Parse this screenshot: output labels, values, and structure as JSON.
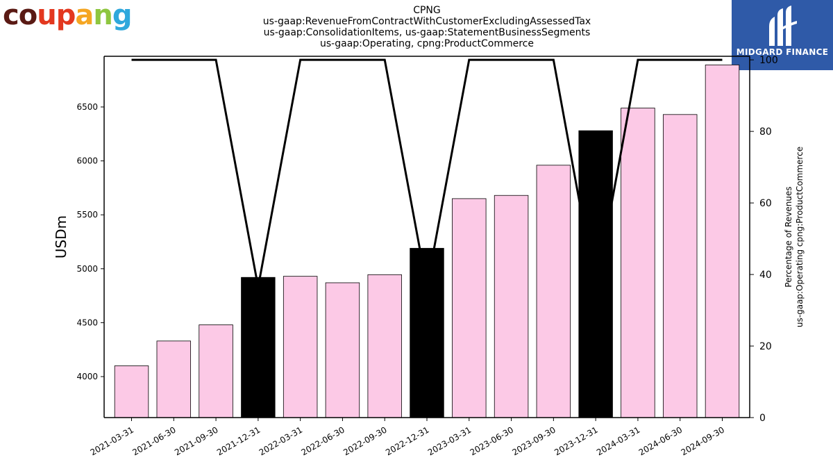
{
  "logos": {
    "left_text": "coupang",
    "left_letter_colors": [
      "#5a1a14",
      "#5a1a14",
      "#e3381f",
      "#e3381f",
      "#f5a623",
      "#8ec63f",
      "#2fa8dc"
    ],
    "right_text": "MIDGARD FINANCE",
    "right_bg": "#2f5aa8"
  },
  "chart_data": {
    "type": "bar",
    "title_lines": [
      "CPNG",
      "us-gaap:RevenueFromContractWithCustomerExcludingAssessedTax",
      "us-gaap:ConsolidationItems, us-gaap:StatementBusinessSegments",
      "us-gaap:Operating, cpng:ProductCommerce"
    ],
    "ylabel": "USDm",
    "y2label_lines": [
      "Percentage of Revenues",
      "us-gaap:Operating cpng:ProductCommerce"
    ],
    "categories": [
      "2021-03-31",
      "2021-06-30",
      "2021-09-30",
      "2021-12-31",
      "2022-03-31",
      "2022-06-30",
      "2022-09-30",
      "2022-12-31",
      "2023-03-31",
      "2023-06-30",
      "2023-09-30",
      "2023-12-31",
      "2024-03-31",
      "2024-06-30",
      "2024-09-30"
    ],
    "values": [
      4100,
      4330,
      4480,
      4920,
      4930,
      4870,
      4945,
      5190,
      5650,
      5680,
      5960,
      6280,
      6490,
      6430,
      6890
    ],
    "highlight": [
      false,
      false,
      false,
      true,
      false,
      false,
      false,
      true,
      false,
      false,
      false,
      true,
      false,
      false,
      false
    ],
    "bar_color": "#fcc9e6",
    "highlight_color": "#000000",
    "ylim": [
      3620,
      6970
    ],
    "yticks": [
      4000,
      4500,
      5000,
      5500,
      6000,
      6500
    ],
    "y2_series": {
      "values": [
        100,
        100,
        100,
        36.5,
        100,
        100,
        100,
        36.5,
        100,
        100,
        100,
        35.5,
        100,
        100,
        100
      ],
      "color": "#000000"
    },
    "y2lim": [
      0,
      101
    ],
    "y2ticks": [
      0,
      20,
      40,
      60,
      80,
      100
    ],
    "grid": false
  }
}
